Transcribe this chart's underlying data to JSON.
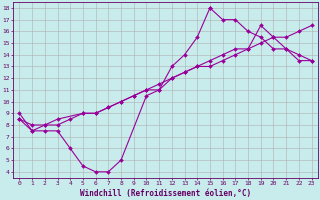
{
  "xlabel": "Windchill (Refroidissement éolien,°C)",
  "bg_color": "#c8ecec",
  "grid_color": "#b0b0b0",
  "line_color": "#990099",
  "marker": "D",
  "markersize": 2,
  "linewidth": 0.8,
  "xlim": [
    -0.5,
    23.5
  ],
  "ylim": [
    3.5,
    18.5
  ],
  "xticks": [
    0,
    1,
    2,
    3,
    4,
    5,
    6,
    7,
    8,
    9,
    10,
    11,
    12,
    13,
    14,
    15,
    16,
    17,
    18,
    19,
    20,
    21,
    22,
    23
  ],
  "yticks": [
    4,
    5,
    6,
    7,
    8,
    9,
    10,
    11,
    12,
    13,
    14,
    15,
    16,
    17,
    18
  ],
  "line1_x": [
    0,
    1,
    2,
    3,
    4,
    5,
    6,
    7,
    8,
    10,
    11,
    12,
    13,
    14,
    15,
    15,
    16,
    17,
    18,
    19,
    20,
    21,
    22,
    23
  ],
  "line1_y": [
    9.0,
    7.5,
    7.5,
    7.5,
    6.0,
    4.5,
    4.0,
    4.0,
    5.0,
    10.5,
    11.0,
    13.0,
    14.0,
    15.5,
    18.0,
    18.0,
    17.0,
    17.0,
    16.0,
    15.5,
    14.5,
    14.5,
    13.5,
    13.5
  ],
  "line2_x": [
    0,
    1,
    2,
    3,
    5,
    6,
    7,
    8,
    9,
    10,
    11,
    12,
    13,
    14,
    15,
    16,
    17,
    18,
    19,
    20,
    21,
    22,
    23
  ],
  "line2_y": [
    8.5,
    8.0,
    8.0,
    8.5,
    9.0,
    9.0,
    9.5,
    10.0,
    10.5,
    11.0,
    11.5,
    12.0,
    12.5,
    13.0,
    13.0,
    13.5,
    14.0,
    14.5,
    15.0,
    15.5,
    15.5,
    16.0,
    16.5
  ],
  "line3_x": [
    0,
    1,
    2,
    3,
    4,
    5,
    6,
    7,
    8,
    9,
    10,
    11,
    12,
    13,
    14,
    15,
    16,
    17,
    18,
    19,
    20,
    21,
    22,
    23
  ],
  "line3_y": [
    8.5,
    7.5,
    8.0,
    8.0,
    8.5,
    9.0,
    9.0,
    9.5,
    10.0,
    10.5,
    11.0,
    11.0,
    12.0,
    12.5,
    13.0,
    13.5,
    14.0,
    14.5,
    14.5,
    16.5,
    15.5,
    14.5,
    14.0,
    13.5
  ],
  "font_color": "#660066",
  "tick_fontsize": 4.5,
  "label_fontsize": 5.5
}
